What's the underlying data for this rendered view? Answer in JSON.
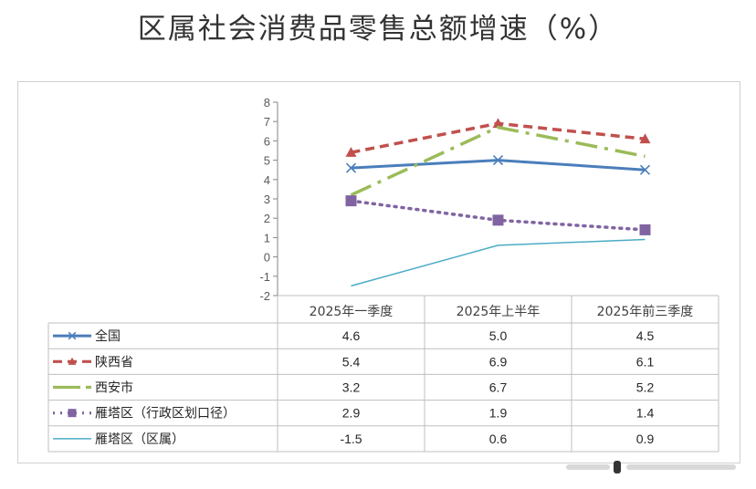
{
  "title": "区属社会消费品零售总额增速（%）",
  "chart_data": {
    "type": "line",
    "categories": [
      "2025年一季度",
      "2025年上半年",
      "2025年前三季度"
    ],
    "ylim": [
      -2,
      8
    ],
    "yticks": [
      -2,
      -1,
      0,
      1,
      2,
      3,
      4,
      5,
      6,
      7,
      8
    ],
    "series": [
      {
        "name": "全国",
        "values": [
          4.6,
          5.0,
          4.5
        ],
        "color": "#4a7ebb",
        "dash": "",
        "marker": "x",
        "width": 3
      },
      {
        "name": "陕西省",
        "values": [
          5.4,
          6.9,
          6.1
        ],
        "color": "#c0504d",
        "dash": "10,6",
        "marker": "triangle",
        "width": 3.5
      },
      {
        "name": "西安市",
        "values": [
          3.2,
          6.7,
          5.2
        ],
        "color": "#9bbb59",
        "dash": "24,8,4,8",
        "marker": "none",
        "width": 3.5
      },
      {
        "name": "雁塔区（行政区划口径）",
        "values": [
          2.9,
          1.9,
          1.4
        ],
        "color": "#8064a2",
        "dash": "2,6",
        "marker": "square",
        "width": 3.5
      },
      {
        "name": "雁塔区（区属）",
        "values": [
          -1.5,
          0.6,
          0.9
        ],
        "color": "#4bacc6",
        "dash": "",
        "marker": "none",
        "width": 1.5
      }
    ],
    "table_values": [
      [
        "4.6",
        "5.0",
        "4.5"
      ],
      [
        "5.4",
        "6.9",
        "6.1"
      ],
      [
        "3.2",
        "6.7",
        "5.2"
      ],
      [
        "2.9",
        "1.9",
        "1.4"
      ],
      [
        "-1.5",
        "0.6",
        "0.9"
      ]
    ]
  }
}
